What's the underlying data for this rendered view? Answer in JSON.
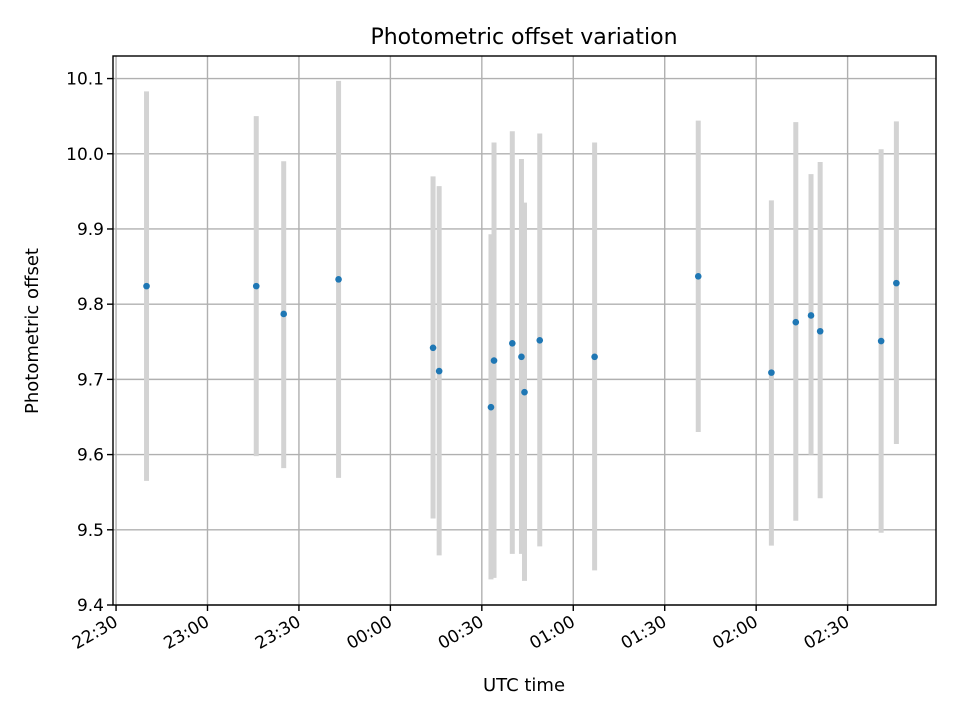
{
  "chart_data": {
    "type": "scatter",
    "title": "Photometric offset variation",
    "xlabel": "UTC time",
    "ylabel": "Photometric offset",
    "x_axis_kind": "time",
    "xlim": [
      "22:29",
      "02:59"
    ],
    "ylim": [
      9.4,
      10.13
    ],
    "grid": true,
    "x_ticks": [
      "22:30",
      "23:00",
      "23:30",
      "00:00",
      "00:30",
      "01:00",
      "01:30",
      "02:00",
      "02:30"
    ],
    "y_ticks": [
      "9.4",
      "9.5",
      "9.6",
      "9.7",
      "9.8",
      "9.9",
      "10.0",
      "10.1"
    ],
    "colors": {
      "point": "#1f77b4",
      "errorbar": "#d3d3d3",
      "grid": "#b0b0b0"
    },
    "points": [
      {
        "t": "22:40",
        "y": 9.824,
        "lo": 9.565,
        "hi": 10.083
      },
      {
        "t": "23:16",
        "y": 9.824,
        "lo": 9.598,
        "hi": 10.05
      },
      {
        "t": "23:25",
        "y": 9.787,
        "lo": 9.582,
        "hi": 9.99
      },
      {
        "t": "23:43",
        "y": 9.833,
        "lo": 9.569,
        "hi": 10.097
      },
      {
        "t": "00:14",
        "y": 9.742,
        "lo": 9.515,
        "hi": 9.97
      },
      {
        "t": "00:16",
        "y": 9.711,
        "lo": 9.466,
        "hi": 9.957
      },
      {
        "t": "00:33",
        "y": 9.663,
        "lo": 9.434,
        "hi": 9.893
      },
      {
        "t": "00:34",
        "y": 9.725,
        "lo": 9.436,
        "hi": 10.015
      },
      {
        "t": "00:40",
        "y": 9.748,
        "lo": 9.468,
        "hi": 10.03
      },
      {
        "t": "00:43",
        "y": 9.73,
        "lo": 9.468,
        "hi": 9.993
      },
      {
        "t": "00:44",
        "y": 9.683,
        "lo": 9.432,
        "hi": 9.935
      },
      {
        "t": "00:49",
        "y": 9.752,
        "lo": 9.478,
        "hi": 10.027
      },
      {
        "t": "01:07",
        "y": 9.73,
        "lo": 9.446,
        "hi": 10.015
      },
      {
        "t": "01:41",
        "y": 9.837,
        "lo": 9.63,
        "hi": 10.044
      },
      {
        "t": "02:05",
        "y": 9.709,
        "lo": 9.479,
        "hi": 9.938
      },
      {
        "t": "02:13",
        "y": 9.776,
        "lo": 9.512,
        "hi": 10.042
      },
      {
        "t": "02:18",
        "y": 9.785,
        "lo": 9.6,
        "hi": 9.973
      },
      {
        "t": "02:21",
        "y": 9.764,
        "lo": 9.542,
        "hi": 9.989
      },
      {
        "t": "02:41",
        "y": 9.751,
        "lo": 9.496,
        "hi": 10.006
      },
      {
        "t": "02:46",
        "y": 9.828,
        "lo": 9.614,
        "hi": 10.043
      }
    ]
  }
}
